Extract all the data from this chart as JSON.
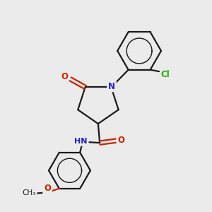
{
  "background_color": "#ebebeb",
  "bond_color": "#1a1a1a",
  "N_color": "#2222cc",
  "O_color": "#cc2200",
  "Cl_color": "#22aa00",
  "bond_width": 1.6,
  "figsize": [
    3.0,
    3.0
  ],
  "dpi": 100,
  "xlim": [
    0,
    10
  ],
  "ylim": [
    0,
    10
  ]
}
